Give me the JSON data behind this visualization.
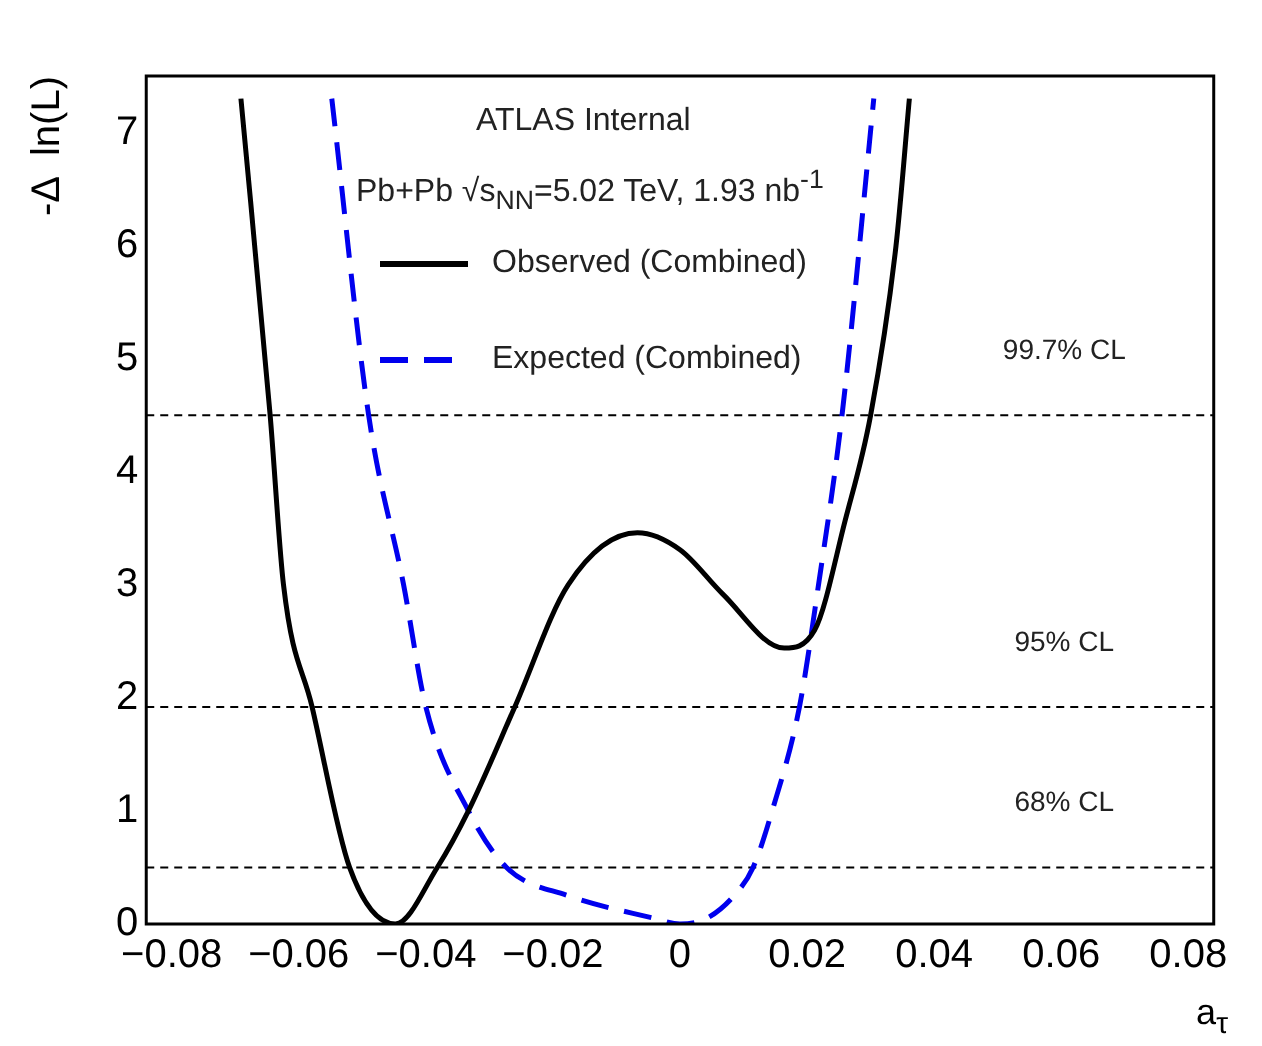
{
  "chart_data": {
    "type": "line",
    "xlabel": "a$_{τ}$",
    "ylabel": "-Δ  ln(L)",
    "annotations": [
      "ATLAS Internal",
      "Pb+Pb  √s$_{NN}$=5.02 TeV, 1.93 nb$^{-1}$"
    ],
    "series": [
      {
        "name": "Observed (Combined)",
        "color": "#000000",
        "line_style": "solid",
        "x": [
          -0.0691,
          -0.0645,
          -0.0624,
          -0.0579,
          -0.052,
          -0.0448,
          -0.0382,
          -0.0333,
          -0.026,
          -0.0176,
          -0.0067,
          0,
          0.0067,
          0.0164,
          0.0212,
          0.026,
          0.03,
          0.034,
          0.0361
        ],
        "values": [
          7.3,
          4.5,
          3,
          1.92,
          0.5,
          0,
          0.5,
          1,
          1.92,
          3,
          3.46,
          3.31,
          2.92,
          2.44,
          2.6,
          3.57,
          4.5,
          6,
          7.3
        ]
      },
      {
        "name": "Expected (Combined)",
        "color": "#0000ee",
        "line_style": "dashed",
        "x": [
          -0.0548,
          -0.049,
          -0.0435,
          -0.04,
          -0.0333,
          -0.0273,
          -0.0176,
          -0.004,
          0,
          0.0042,
          0.0085,
          0.0115,
          0.0145,
          0.0188,
          0.0218,
          0.0255,
          0.0305
        ],
        "values": [
          7.3,
          4.5,
          3,
          1.92,
          1,
          0.5,
          0.25,
          0.05,
          0,
          0.05,
          0.25,
          0.5,
          1,
          1.92,
          3,
          4.5,
          7.3
        ]
      }
    ],
    "xlim": [
      -0.084,
      0.084
    ],
    "xticks": [
      -0.08,
      -0.06,
      -0.04,
      -0.02,
      0,
      0.02,
      0.04,
      0.06,
      0.08
    ],
    "ylim": [
      0,
      7.5
    ],
    "yticks": [
      0,
      1,
      2,
      3,
      4,
      5,
      6,
      7
    ],
    "ref_lines": [
      {
        "axis": "y",
        "value": 4.5,
        "label": "99.7% CL",
        "color": "#000000",
        "line_style": "dashed"
      },
      {
        "axis": "y",
        "value": 1.92,
        "label": "95% CL",
        "color": "#000000",
        "line_style": "dashed"
      },
      {
        "axis": "y",
        "value": 0.5,
        "label": "68% CL",
        "color": "#000000",
        "line_style": "dashed"
      }
    ],
    "grid": false,
    "legend": "top left",
    "marker": "none"
  }
}
